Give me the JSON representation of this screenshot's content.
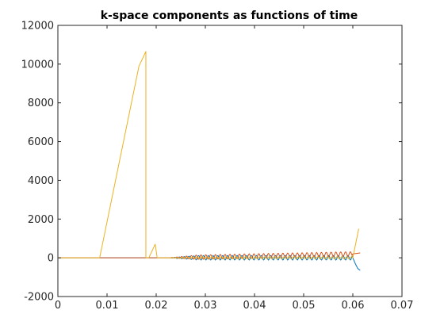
{
  "chart_data": {
    "type": "line",
    "title": "k-space components as functions of time",
    "xlabel": "",
    "ylabel": "",
    "xlim": [
      0,
      0.07
    ],
    "ylim": [
      -2000,
      12000
    ],
    "x_ticks": [
      0,
      0.01,
      0.02,
      0.03,
      0.04,
      0.05,
      0.06,
      0.07
    ],
    "x_tick_labels": [
      "0",
      "0.01",
      "0.02",
      "0.03",
      "0.04",
      "0.05",
      "0.06",
      "0.07"
    ],
    "y_ticks": [
      -2000,
      0,
      2000,
      4000,
      6000,
      8000,
      10000,
      12000
    ],
    "y_tick_labels": [
      "-2000",
      "0",
      "2000",
      "4000",
      "6000",
      "8000",
      "10000",
      "12000"
    ],
    "grid": false,
    "legend": "none",
    "series": [
      {
        "color": "#0072BD",
        "x": [
          0,
          0.0225,
          0.06,
          0.0605,
          0.061,
          0.0615
        ],
        "y": [
          0,
          0,
          0,
          -300,
          -550,
          -650
        ],
        "oscillation": {
          "x_start": 0.0225,
          "x_end": 0.06,
          "amplitude": 120,
          "period": 0.00098
        }
      },
      {
        "color": "#D95319",
        "x": [
          0,
          0.0225,
          0.06,
          0.0615
        ],
        "y": [
          0,
          0,
          200,
          250
        ],
        "oscillation": {
          "x_start": 0.0225,
          "x_end": 0.06,
          "amplitude": 120,
          "period": 0.00098,
          "phase": 0.5
        }
      },
      {
        "color": "#EDB120",
        "x": [
          0,
          0.0085,
          0.0165,
          0.0179,
          0.0179,
          0.0185,
          0.0198,
          0.0202,
          0.021,
          0.0225,
          0.06,
          0.0612
        ],
        "y": [
          0,
          0,
          9900,
          10650,
          0,
          0,
          700,
          0,
          0,
          0,
          0,
          1500
        ],
        "oscillation": {
          "x_start": 0.0225,
          "x_end": 0.06,
          "amplitude": 60,
          "period": 0.00098,
          "phase": 0.25
        }
      }
    ]
  },
  "colors": {
    "axis": "#262626",
    "background": "#ffffff"
  }
}
